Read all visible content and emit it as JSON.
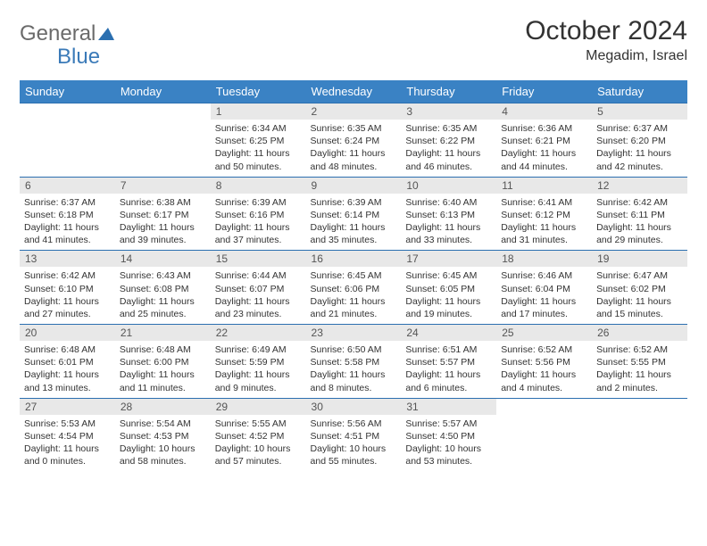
{
  "brand": {
    "part1": "General",
    "part2": "Blue"
  },
  "title": "October 2024",
  "location": "Megadim, Israel",
  "colors": {
    "header_bg": "#3a82c4",
    "header_text": "#ffffff",
    "row_border": "#2b6fb0",
    "daynum_bg": "#e8e8e8",
    "text": "#333333"
  },
  "weekdays": [
    "Sunday",
    "Monday",
    "Tuesday",
    "Wednesday",
    "Thursday",
    "Friday",
    "Saturday"
  ],
  "weeks": [
    [
      null,
      null,
      {
        "d": "1",
        "sr": "6:34 AM",
        "ss": "6:25 PM",
        "dl": "11 hours and 50 minutes."
      },
      {
        "d": "2",
        "sr": "6:35 AM",
        "ss": "6:24 PM",
        "dl": "11 hours and 48 minutes."
      },
      {
        "d": "3",
        "sr": "6:35 AM",
        "ss": "6:22 PM",
        "dl": "11 hours and 46 minutes."
      },
      {
        "d": "4",
        "sr": "6:36 AM",
        "ss": "6:21 PM",
        "dl": "11 hours and 44 minutes."
      },
      {
        "d": "5",
        "sr": "6:37 AM",
        "ss": "6:20 PM",
        "dl": "11 hours and 42 minutes."
      }
    ],
    [
      {
        "d": "6",
        "sr": "6:37 AM",
        "ss": "6:18 PM",
        "dl": "11 hours and 41 minutes."
      },
      {
        "d": "7",
        "sr": "6:38 AM",
        "ss": "6:17 PM",
        "dl": "11 hours and 39 minutes."
      },
      {
        "d": "8",
        "sr": "6:39 AM",
        "ss": "6:16 PM",
        "dl": "11 hours and 37 minutes."
      },
      {
        "d": "9",
        "sr": "6:39 AM",
        "ss": "6:14 PM",
        "dl": "11 hours and 35 minutes."
      },
      {
        "d": "10",
        "sr": "6:40 AM",
        "ss": "6:13 PM",
        "dl": "11 hours and 33 minutes."
      },
      {
        "d": "11",
        "sr": "6:41 AM",
        "ss": "6:12 PM",
        "dl": "11 hours and 31 minutes."
      },
      {
        "d": "12",
        "sr": "6:42 AM",
        "ss": "6:11 PM",
        "dl": "11 hours and 29 minutes."
      }
    ],
    [
      {
        "d": "13",
        "sr": "6:42 AM",
        "ss": "6:10 PM",
        "dl": "11 hours and 27 minutes."
      },
      {
        "d": "14",
        "sr": "6:43 AM",
        "ss": "6:08 PM",
        "dl": "11 hours and 25 minutes."
      },
      {
        "d": "15",
        "sr": "6:44 AM",
        "ss": "6:07 PM",
        "dl": "11 hours and 23 minutes."
      },
      {
        "d": "16",
        "sr": "6:45 AM",
        "ss": "6:06 PM",
        "dl": "11 hours and 21 minutes."
      },
      {
        "d": "17",
        "sr": "6:45 AM",
        "ss": "6:05 PM",
        "dl": "11 hours and 19 minutes."
      },
      {
        "d": "18",
        "sr": "6:46 AM",
        "ss": "6:04 PM",
        "dl": "11 hours and 17 minutes."
      },
      {
        "d": "19",
        "sr": "6:47 AM",
        "ss": "6:02 PM",
        "dl": "11 hours and 15 minutes."
      }
    ],
    [
      {
        "d": "20",
        "sr": "6:48 AM",
        "ss": "6:01 PM",
        "dl": "11 hours and 13 minutes."
      },
      {
        "d": "21",
        "sr": "6:48 AM",
        "ss": "6:00 PM",
        "dl": "11 hours and 11 minutes."
      },
      {
        "d": "22",
        "sr": "6:49 AM",
        "ss": "5:59 PM",
        "dl": "11 hours and 9 minutes."
      },
      {
        "d": "23",
        "sr": "6:50 AM",
        "ss": "5:58 PM",
        "dl": "11 hours and 8 minutes."
      },
      {
        "d": "24",
        "sr": "6:51 AM",
        "ss": "5:57 PM",
        "dl": "11 hours and 6 minutes."
      },
      {
        "d": "25",
        "sr": "6:52 AM",
        "ss": "5:56 PM",
        "dl": "11 hours and 4 minutes."
      },
      {
        "d": "26",
        "sr": "6:52 AM",
        "ss": "5:55 PM",
        "dl": "11 hours and 2 minutes."
      }
    ],
    [
      {
        "d": "27",
        "sr": "5:53 AM",
        "ss": "4:54 PM",
        "dl": "11 hours and 0 minutes."
      },
      {
        "d": "28",
        "sr": "5:54 AM",
        "ss": "4:53 PM",
        "dl": "10 hours and 58 minutes."
      },
      {
        "d": "29",
        "sr": "5:55 AM",
        "ss": "4:52 PM",
        "dl": "10 hours and 57 minutes."
      },
      {
        "d": "30",
        "sr": "5:56 AM",
        "ss": "4:51 PM",
        "dl": "10 hours and 55 minutes."
      },
      {
        "d": "31",
        "sr": "5:57 AM",
        "ss": "4:50 PM",
        "dl": "10 hours and 53 minutes."
      },
      null,
      null
    ]
  ],
  "labels": {
    "sunrise": "Sunrise:",
    "sunset": "Sunset:",
    "daylight": "Daylight:"
  }
}
